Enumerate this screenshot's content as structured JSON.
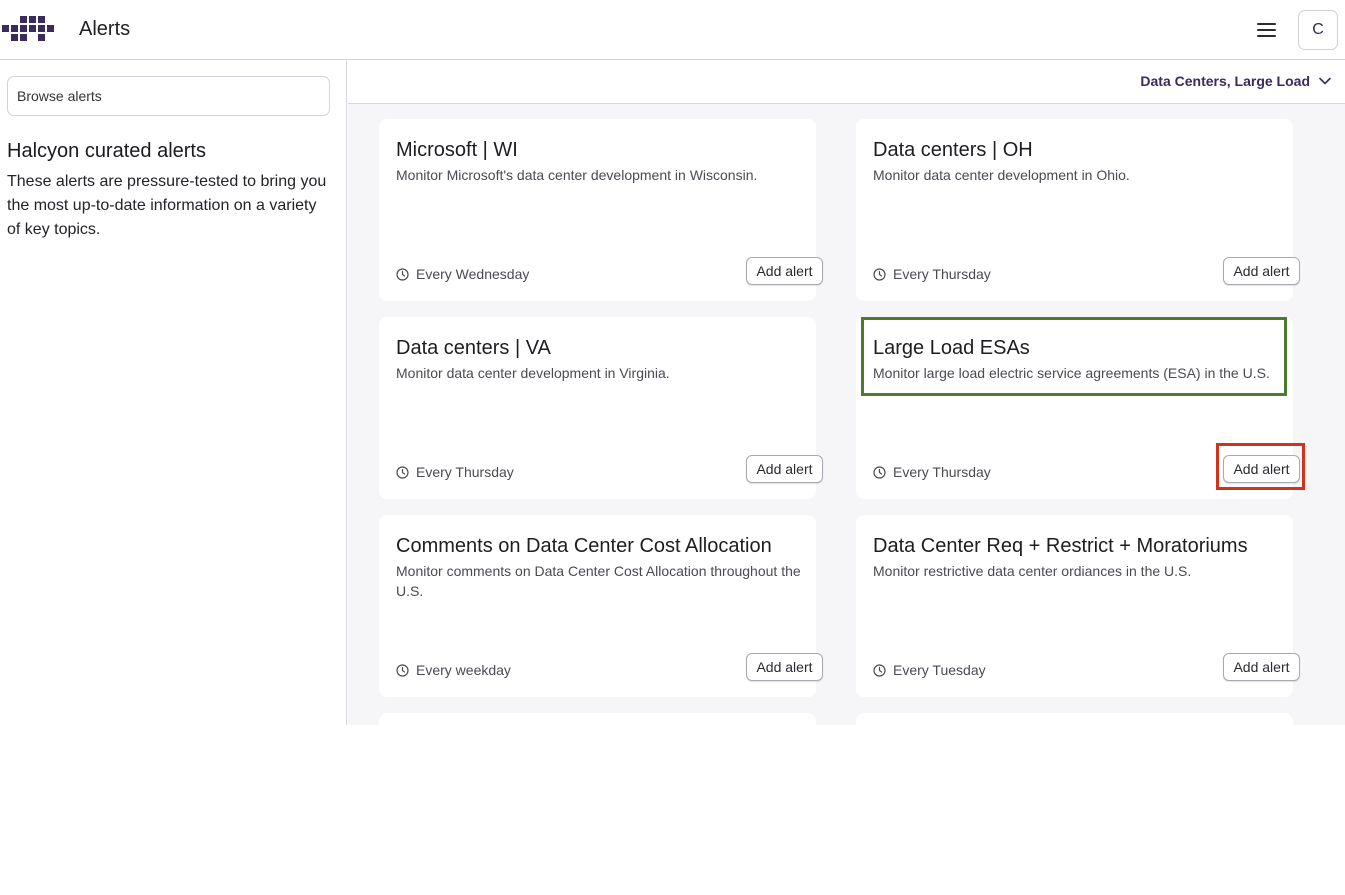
{
  "header": {
    "title": "Alerts",
    "avatar_initial": "C"
  },
  "sidebar": {
    "browse_label": "Browse alerts",
    "heading": "Halcyon curated alerts",
    "description": "These alerts are pressure-tested to bring you the most up-to-date information on a variety of key topics."
  },
  "filter": {
    "selected": "Data Centers, Large Load"
  },
  "cards": [
    {
      "title": "Microsoft | WI",
      "description": "Monitor Microsoft's data center development in Wisconsin.",
      "schedule": "Every Wednesday",
      "button": "Add alert"
    },
    {
      "title": "Data centers | OH",
      "description": "Monitor data center development in Ohio.",
      "schedule": "Every Thursday",
      "button": "Add alert"
    },
    {
      "title": "Data centers | VA",
      "description": "Monitor data center development in Virginia.",
      "schedule": "Every Thursday",
      "button": "Add alert"
    },
    {
      "title": "Large Load ESAs",
      "description": "Monitor large load electric service agreements (ESA) in the U.S.",
      "schedule": "Every Thursday",
      "button": "Add alert"
    },
    {
      "title": "Comments on Data Center Cost Allocation",
      "description": "Monitor comments on Data Center Cost Allocation throughout the U.S.",
      "schedule": "Every weekday",
      "button": "Add alert"
    },
    {
      "title": "Data Center Req + Restrict + Moratoriums",
      "description": "Monitor restrictive data center ordiances in the U.S.",
      "schedule": "Every Tuesday",
      "button": "Add alert"
    }
  ],
  "colors": {
    "brand": "#3b2a5c",
    "highlight_green": "#4d7a2c",
    "highlight_red": "#d0341c"
  }
}
